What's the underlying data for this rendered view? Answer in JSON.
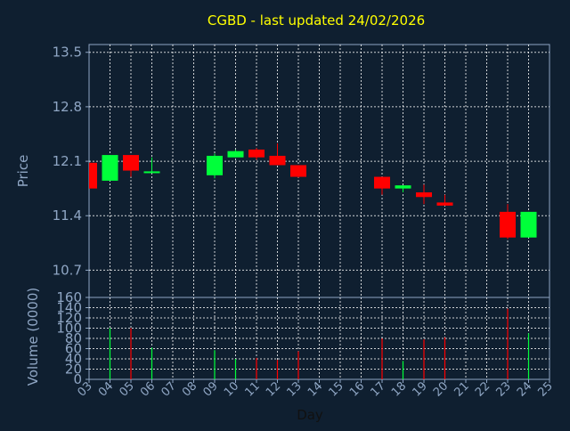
{
  "title": "CGBD - last updated 24/02/2026",
  "colors": {
    "background": "#0f1f30",
    "axis": "#8fa6c4",
    "grid": "#ffffff",
    "up": "#00ff3a",
    "down": "#ff0000",
    "title": "#ffff00"
  },
  "chart_data": [
    {
      "type": "candlestick",
      "ylabel": "Price",
      "ylim": [
        10.35,
        13.6
      ],
      "yticks": [
        "13.5",
        "12.8",
        "12.1",
        "11.4",
        "10.7"
      ],
      "ytick_values": [
        13.5,
        12.8,
        12.1,
        11.4,
        10.7
      ],
      "grid": true,
      "candles": [
        {
          "x": 3,
          "open": 12.08,
          "high": 12.08,
          "low": 11.75,
          "close": 11.75
        },
        {
          "x": 4,
          "open": 11.85,
          "high": 12.18,
          "low": 11.85,
          "close": 12.18
        },
        {
          "x": 5,
          "open": 12.18,
          "high": 12.18,
          "low": 11.9,
          "close": 11.98
        },
        {
          "x": 6,
          "open": 11.97,
          "high": 12.15,
          "low": 11.95,
          "close": 11.97
        },
        {
          "x": 9,
          "open": 11.92,
          "high": 12.2,
          "low": 11.88,
          "close": 12.17
        },
        {
          "x": 10,
          "open": 12.15,
          "high": 12.25,
          "low": 12.15,
          "close": 12.23
        },
        {
          "x": 11,
          "open": 12.25,
          "high": 12.27,
          "low": 12.12,
          "close": 12.15
        },
        {
          "x": 12,
          "open": 12.17,
          "high": 12.33,
          "low": 12.05,
          "close": 12.05
        },
        {
          "x": 13,
          "open": 12.05,
          "high": 12.05,
          "low": 11.89,
          "close": 11.9
        },
        {
          "x": 17,
          "open": 11.9,
          "high": 11.9,
          "low": 11.67,
          "close": 11.75
        },
        {
          "x": 18,
          "open": 11.75,
          "high": 11.79,
          "low": 11.7,
          "close": 11.79
        },
        {
          "x": 19,
          "open": 11.7,
          "high": 11.8,
          "low": 11.55,
          "close": 11.64
        },
        {
          "x": 20,
          "open": 11.57,
          "high": 11.67,
          "low": 11.53,
          "close": 11.53
        },
        {
          "x": 23,
          "open": 11.45,
          "high": 11.55,
          "low": 11.1,
          "close": 11.12
        },
        {
          "x": 24,
          "open": 11.12,
          "high": 11.45,
          "low": 11.12,
          "close": 11.45
        }
      ]
    },
    {
      "type": "bar",
      "ylabel": "Volume (0000)",
      "xlabel": "Day",
      "ylim": [
        0,
        160
      ],
      "yticks": [
        "160",
        "140",
        "120",
        "100",
        "80",
        "60",
        "40",
        "20",
        "0"
      ],
      "ytick_values": [
        160,
        140,
        120,
        100,
        80,
        60,
        40,
        20,
        0
      ],
      "xticks": [
        "03",
        "04",
        "05",
        "06",
        "07",
        "08",
        "09",
        "10",
        "11",
        "12",
        "13",
        "14",
        "15",
        "16",
        "17",
        "18",
        "19",
        "20",
        "21",
        "22",
        "23",
        "24",
        "25"
      ],
      "xtick_values": [
        3,
        4,
        5,
        6,
        7,
        8,
        9,
        10,
        11,
        12,
        13,
        14,
        15,
        16,
        17,
        18,
        19,
        20,
        21,
        22,
        23,
        24,
        25
      ],
      "volumes": [
        {
          "x": 4,
          "value": 100,
          "dir": "up"
        },
        {
          "x": 5,
          "value": 100,
          "dir": "down"
        },
        {
          "x": 6,
          "value": 62,
          "dir": "up"
        },
        {
          "x": 9,
          "value": 57,
          "dir": "up"
        },
        {
          "x": 10,
          "value": 40,
          "dir": "up"
        },
        {
          "x": 11,
          "value": 42,
          "dir": "down"
        },
        {
          "x": 12,
          "value": 38,
          "dir": "down"
        },
        {
          "x": 13,
          "value": 55,
          "dir": "down"
        },
        {
          "x": 17,
          "value": 80,
          "dir": "down"
        },
        {
          "x": 18,
          "value": 36,
          "dir": "up"
        },
        {
          "x": 19,
          "value": 78,
          "dir": "down"
        },
        {
          "x": 20,
          "value": 82,
          "dir": "down"
        },
        {
          "x": 23,
          "value": 138,
          "dir": "down"
        },
        {
          "x": 24,
          "value": 90,
          "dir": "up"
        }
      ]
    }
  ]
}
